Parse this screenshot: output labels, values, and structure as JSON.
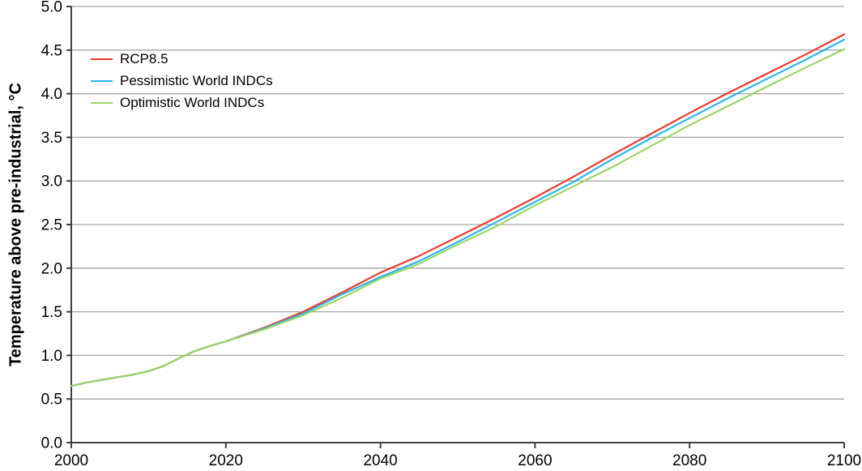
{
  "chart_data": {
    "type": "line",
    "title": "",
    "xlabel": "",
    "ylabel": "Temperature above pre-industrial, °C",
    "xlim": [
      2000,
      2100
    ],
    "ylim": [
      0.0,
      5.0
    ],
    "xticks": [
      "2000",
      "2020",
      "2040",
      "2060",
      "2080",
      "2100"
    ],
    "yticks": [
      "0.0",
      "0.5",
      "1.0",
      "1.5",
      "2.0",
      "2.5",
      "3.0",
      "3.5",
      "4.0",
      "4.5",
      "5.0"
    ],
    "grid": "horizontal-only",
    "legend_position": "top-left-inside",
    "x": [
      2000,
      2002,
      2004,
      2006,
      2008,
      2010,
      2012,
      2014,
      2016,
      2018,
      2020,
      2025,
      2030,
      2035,
      2040,
      2045,
      2050,
      2055,
      2060,
      2065,
      2070,
      2075,
      2080,
      2085,
      2090,
      2095,
      2100
    ],
    "series": [
      {
        "name": "RCP8.5",
        "color": "#ee3a2e",
        "values": [
          0.65,
          0.69,
          0.72,
          0.75,
          0.78,
          0.82,
          0.88,
          0.97,
          1.05,
          1.11,
          1.16,
          1.32,
          1.5,
          1.72,
          1.95,
          2.14,
          2.36,
          2.58,
          2.81,
          3.05,
          3.3,
          3.54,
          3.78,
          4.01,
          4.23,
          4.45,
          4.68
        ]
      },
      {
        "name": "Pessimistic World INDCs",
        "color": "#29b5ea",
        "values": [
          0.65,
          0.69,
          0.72,
          0.75,
          0.78,
          0.82,
          0.88,
          0.97,
          1.05,
          1.11,
          1.16,
          1.31,
          1.48,
          1.7,
          1.9,
          2.08,
          2.3,
          2.53,
          2.76,
          2.99,
          3.25,
          3.49,
          3.72,
          3.95,
          4.17,
          4.39,
          4.62
        ]
      },
      {
        "name": "Optimistic World INDCs",
        "color": "#9cd465",
        "values": [
          0.65,
          0.69,
          0.72,
          0.75,
          0.78,
          0.82,
          0.88,
          0.97,
          1.05,
          1.11,
          1.16,
          1.3,
          1.46,
          1.66,
          1.88,
          2.05,
          2.27,
          2.48,
          2.72,
          2.94,
          3.16,
          3.4,
          3.64,
          3.86,
          4.08,
          4.3,
          4.51
        ]
      }
    ],
    "colors": {
      "grid": "#a6a6a6",
      "axis": "#404040",
      "text": "#000000"
    }
  }
}
